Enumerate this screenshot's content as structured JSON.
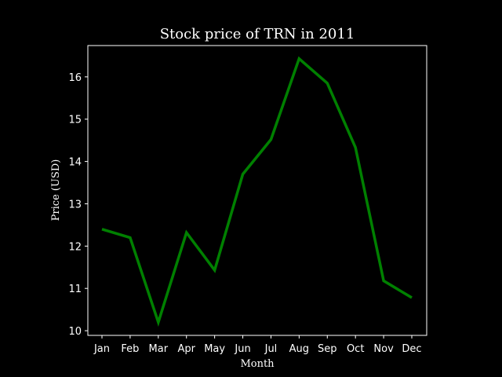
{
  "chart_data": {
    "type": "line",
    "title": "Stock price of TRN in 2011",
    "xlabel": "Month",
    "ylabel": "Price (USD)",
    "categories": [
      "Jan",
      "Feb",
      "Mar",
      "Apr",
      "May",
      "Jun",
      "Jul",
      "Aug",
      "Sep",
      "Oct",
      "Nov",
      "Dec"
    ],
    "series": [
      {
        "values": [
          12.4,
          12.2,
          10.2,
          12.32,
          11.43,
          13.7,
          14.52,
          16.43,
          15.85,
          14.33,
          11.18,
          10.78
        ]
      }
    ],
    "yticks": [
      10,
      11,
      12,
      13,
      14,
      15,
      16
    ],
    "ylim": [
      9.89,
      16.74
    ],
    "grid": false,
    "colors": {
      "background": "#000000",
      "axes": "#ffffff",
      "text": "#ffffff",
      "line": "#008000"
    }
  }
}
